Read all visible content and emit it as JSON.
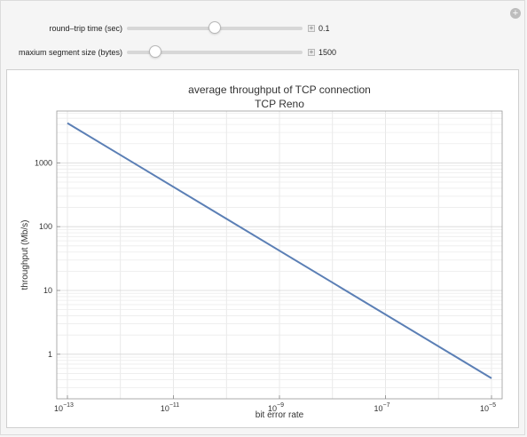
{
  "controls": {
    "rtt": {
      "label": "round–trip time (sec)",
      "value": "0.1",
      "fraction": 0.5
    },
    "mss": {
      "label": "maxium segment size (bytes)",
      "value": "1500",
      "fraction": 0.16
    }
  },
  "icons": {
    "corner": "plus-circle-icon",
    "expand": "plus-icon"
  },
  "chart_data": {
    "type": "line",
    "title": "average throughput of TCP connection",
    "subtitle": "TCP Reno",
    "xlabel": "bit error rate",
    "ylabel": "throughput (Mb/s)",
    "x_scale": "log",
    "y_scale": "log",
    "xlim": [
      1e-13,
      1e-05
    ],
    "ylim": [
      0.2,
      6500
    ],
    "grid": true,
    "x_ticks": [
      {
        "value": 1e-13,
        "base": "10",
        "exp": "−13"
      },
      {
        "value": 1e-11,
        "base": "10",
        "exp": "−11"
      },
      {
        "value": 1e-09,
        "base": "10",
        "exp": "−9"
      },
      {
        "value": 1e-07,
        "base": "10",
        "exp": "−7"
      },
      {
        "value": 1e-05,
        "base": "10",
        "exp": "−5"
      }
    ],
    "y_ticks": [
      {
        "value": 1,
        "label": "1"
      },
      {
        "value": 10,
        "label": "10"
      },
      {
        "value": 100,
        "label": "100"
      },
      {
        "value": 1000,
        "label": "1000"
      }
    ],
    "series": [
      {
        "color": "#5b7fb5",
        "points": [
          [
            1e-13,
            4200
          ],
          [
            1e-05,
            0.42
          ]
        ]
      }
    ]
  }
}
